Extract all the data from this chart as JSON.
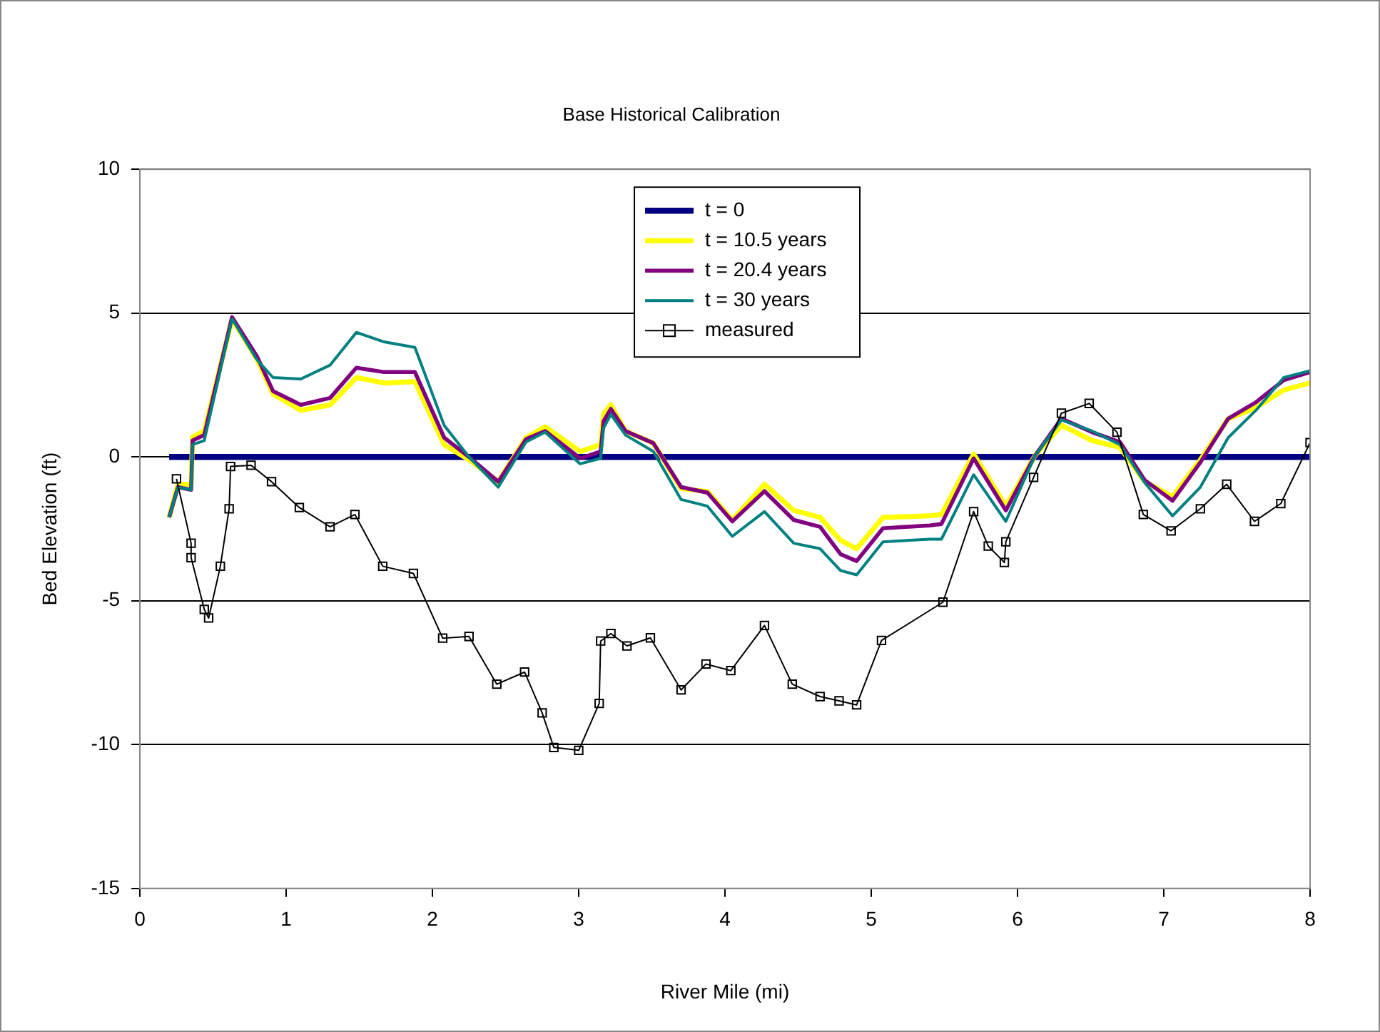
{
  "chart_data": {
    "type": "line",
    "title": "Base Historical Calibration",
    "xlabel": "River Mile (mi)",
    "ylabel": "Bed Elevation (ft)",
    "xlim": [
      0,
      8
    ],
    "xticks": [
      0,
      1,
      2,
      3,
      4,
      5,
      6,
      7,
      8
    ],
    "ylim": [
      -15,
      10
    ],
    "yticks": [
      -15,
      -10,
      -5,
      0,
      5,
      10
    ],
    "grid": "y",
    "legend": "top",
    "line_style": "solid",
    "series": [
      {
        "name": "t = 0",
        "color": "#000080",
        "marker": "none",
        "x": [
          0.2,
          8.0
        ],
        "values": [
          0,
          0
        ]
      },
      {
        "name": "t = 10.5 years",
        "color": "#ffff00",
        "marker": "none",
        "x": [
          0.2,
          0.26,
          0.35,
          0.36,
          0.44,
          0.63,
          0.8,
          0.91,
          1.1,
          1.3,
          1.48,
          1.67,
          1.88,
          2.08,
          2.25,
          2.45,
          2.64,
          2.77,
          3.01,
          3.15,
          3.17,
          3.22,
          3.32,
          3.51,
          3.7,
          3.88,
          4.05,
          4.27,
          4.47,
          4.65,
          4.79,
          4.9,
          5.08,
          5.4,
          5.48,
          5.7,
          5.92,
          6.12,
          6.3,
          6.51,
          6.7,
          6.87,
          7.06,
          7.25,
          7.44,
          7.63,
          7.82,
          8.0
        ],
        "values": [
          -2.1,
          -0.95,
          -0.95,
          0.7,
          0.9,
          4.8,
          3.4,
          2.19,
          1.62,
          1.81,
          2.76,
          2.57,
          2.62,
          0.43,
          -0.1,
          -0.86,
          0.67,
          1.05,
          0.19,
          0.43,
          1.5,
          1.81,
          0.9,
          0.48,
          -1.1,
          -1.2,
          -2.19,
          -0.95,
          -1.86,
          -2.1,
          -2.9,
          -3.19,
          -2.1,
          -2.05,
          -2.0,
          0.1,
          -1.71,
          0.05,
          1.1,
          0.57,
          0.33,
          -0.86,
          -1.38,
          -0.1,
          1.33,
          1.71,
          2.33,
          2.57
        ]
      },
      {
        "name": "t = 20.4 years",
        "color": "#800080",
        "marker": "none",
        "x": [
          0.2,
          0.26,
          0.35,
          0.36,
          0.44,
          0.63,
          0.8,
          0.91,
          1.1,
          1.3,
          1.48,
          1.67,
          1.88,
          2.08,
          2.25,
          2.45,
          2.64,
          2.77,
          3.01,
          3.15,
          3.17,
          3.22,
          3.32,
          3.51,
          3.7,
          3.88,
          4.05,
          4.27,
          4.47,
          4.65,
          4.79,
          4.9,
          5.08,
          5.4,
          5.48,
          5.7,
          5.92,
          6.12,
          6.3,
          6.51,
          6.7,
          6.87,
          7.06,
          7.25,
          7.44,
          7.63,
          7.82,
          8.0
        ],
        "values": [
          -2.1,
          -1.05,
          -1.14,
          0.57,
          0.76,
          4.86,
          3.5,
          2.29,
          1.81,
          2.05,
          3.1,
          2.95,
          2.95,
          0.67,
          0,
          -0.86,
          0.62,
          0.9,
          -0.05,
          0.19,
          1.24,
          1.67,
          0.9,
          0.48,
          -1.05,
          -1.24,
          -2.24,
          -1.19,
          -2.19,
          -2.43,
          -3.38,
          -3.62,
          -2.48,
          -2.38,
          -2.33,
          -0.05,
          -1.86,
          0.05,
          1.33,
          0.86,
          0.52,
          -0.81,
          -1.52,
          -0.19,
          1.33,
          1.9,
          2.67,
          2.95
        ]
      },
      {
        "name": "t = 30 years",
        "color": "#008080",
        "marker": "none",
        "x": [
          0.2,
          0.26,
          0.35,
          0.36,
          0.44,
          0.63,
          0.8,
          0.91,
          1.1,
          1.3,
          1.48,
          1.67,
          1.88,
          2.08,
          2.25,
          2.45,
          2.64,
          2.77,
          3.01,
          3.15,
          3.17,
          3.22,
          3.32,
          3.51,
          3.7,
          3.88,
          4.05,
          4.27,
          4.47,
          4.65,
          4.79,
          4.9,
          5.08,
          5.4,
          5.48,
          5.7,
          5.92,
          6.12,
          6.3,
          6.51,
          6.7,
          6.87,
          7.06,
          7.25,
          7.44,
          7.63,
          7.82,
          8.0
        ],
        "values": [
          -2.1,
          -1.05,
          -1.14,
          0.43,
          0.57,
          4.8,
          3.38,
          2.76,
          2.71,
          3.19,
          4.33,
          4.0,
          3.81,
          1.1,
          0,
          -1.05,
          0.52,
          0.86,
          -0.24,
          -0.05,
          1.0,
          1.48,
          0.76,
          0.19,
          -1.48,
          -1.71,
          -2.76,
          -1.9,
          -3.0,
          -3.19,
          -3.95,
          -4.1,
          -2.95,
          -2.86,
          -2.86,
          -0.62,
          -2.24,
          0.05,
          1.29,
          0.9,
          0.43,
          -0.9,
          -2.05,
          -1.05,
          0.67,
          1.62,
          2.76,
          3.0
        ]
      },
      {
        "name": "measured",
        "color": "#000000",
        "marker": "square",
        "x": [
          0.25,
          0.35,
          0.35,
          0.44,
          0.47,
          0.55,
          0.61,
          0.62,
          0.76,
          0.9,
          1.09,
          1.3,
          1.47,
          1.66,
          1.87,
          2.07,
          2.25,
          2.44,
          2.63,
          2.75,
          2.83,
          3.0,
          3.14,
          3.15,
          3.22,
          3.33,
          3.49,
          3.7,
          3.87,
          4.04,
          4.27,
          4.46,
          4.65,
          4.78,
          4.9,
          5.07,
          5.49,
          5.7,
          5.8,
          5.91,
          5.92,
          6.11,
          6.3,
          6.49,
          6.68,
          6.86,
          7.05,
          7.25,
          7.43,
          7.62,
          7.8,
          8.0
        ],
        "values": [
          -0.76,
          -3.0,
          -3.5,
          -5.3,
          -5.6,
          -3.8,
          -1.8,
          -0.33,
          -0.29,
          -0.86,
          -1.76,
          -2.43,
          -2.0,
          -3.8,
          -4.05,
          -6.3,
          -6.24,
          -7.9,
          -7.48,
          -8.9,
          -10.1,
          -10.2,
          -8.57,
          -6.4,
          -6.14,
          -6.57,
          -6.29,
          -8.1,
          -7.2,
          -7.43,
          -5.86,
          -7.9,
          -8.33,
          -8.48,
          -8.62,
          -6.38,
          -5.05,
          -1.9,
          -3.1,
          -3.67,
          -2.95,
          -0.71,
          1.52,
          1.86,
          0.86,
          -2.0,
          -2.57,
          -1.8,
          -0.95,
          -2.24,
          -1.62,
          0.5
        ]
      }
    ]
  }
}
